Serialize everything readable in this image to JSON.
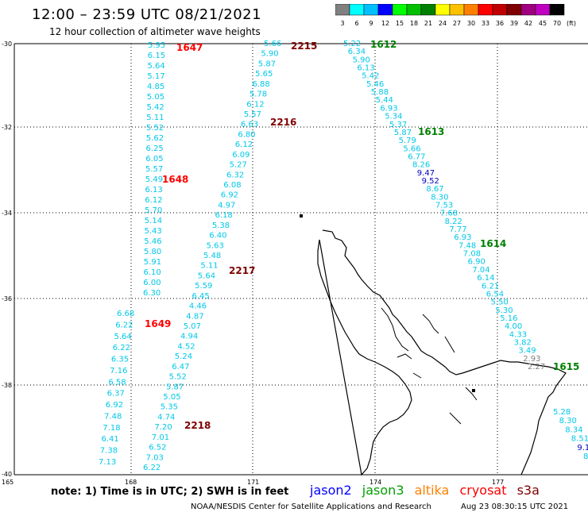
{
  "title": "12:00 – 23:59 UTC 08/21/2021",
  "subtitle": "12 hour collection of altimeter wave heights",
  "legend": {
    "colors": [
      "#808080",
      "#00ffff",
      "#00c0ff",
      "#0000ff",
      "#00ff00",
      "#00c000",
      "#008000",
      "#ffff00",
      "#ffc000",
      "#ff8000",
      "#ff0000",
      "#c00000",
      "#800000",
      "#a00080",
      "#c000c0",
      "#000000"
    ],
    "labels": [
      "3",
      "6",
      "9",
      "12",
      "15",
      "18",
      "21",
      "24",
      "27",
      "30",
      "33",
      "36",
      "39",
      "42",
      "45",
      "70",
      "(ft)"
    ]
  },
  "axes": {
    "lon_ticks": [
      "165",
      "168",
      "171",
      "174",
      "177"
    ],
    "lat_ticks": [
      "-30",
      "-32",
      "-34",
      "-36",
      "-38",
      "-40"
    ]
  },
  "passes": [
    {
      "time": "1647",
      "color": "#ff0000",
      "values": [
        "5.95",
        "6.15",
        "5.64",
        "5.17",
        "4.85",
        "5.05",
        "5.42",
        "5.11",
        "5.52",
        "5.62",
        "6.25",
        "6.05",
        "5.57",
        "5.49",
        "6.13",
        "6.12",
        "5.70",
        "5.14",
        "5.43",
        "5.46",
        "5.80",
        "5.91",
        "6.10",
        "6.00",
        "6.30"
      ]
    },
    {
      "time": "1648",
      "color": "#ff0000",
      "values": []
    },
    {
      "time": "1649",
      "color": "#ff0000",
      "values": [
        "6.68",
        "6.22",
        "5.64",
        "6.22",
        "6.35",
        "7.16",
        "6.58",
        "6.37",
        "6.92",
        "7.48",
        "7.18",
        "6.41",
        "7.38",
        "7.13"
      ]
    },
    {
      "time": "2215",
      "color": "#800000",
      "values": [
        "5.66",
        "5.90",
        "5.87",
        "5.65",
        "6.88",
        "5.78",
        "6.12",
        "5.57",
        "6.63",
        "6.80",
        "6.12",
        "6.09",
        "5.27",
        "6.32",
        "6.08",
        "6.92",
        "4.97",
        "6.18",
        "5.38",
        "6.40",
        "5.63",
        "5.48",
        "5.11",
        "5.64",
        "5.59",
        "6.45",
        "4.46",
        "4.87",
        "5.07",
        "4.94",
        "4.52",
        "5.24",
        "6.47",
        "5.52",
        "5.87",
        "5.05",
        "5.35",
        "4.74",
        "7.20",
        "7.01",
        "6.52",
        "7.03",
        "6.22"
      ]
    },
    {
      "time": "2216",
      "color": "#800000",
      "values": []
    },
    {
      "time": "2217",
      "color": "#800000",
      "values": []
    },
    {
      "time": "2218",
      "color": "#800000",
      "values": []
    },
    {
      "time": "1612",
      "color": "#008000",
      "values": [
        "5.22",
        "6.34",
        "5.90",
        "6.13",
        "5.42",
        "5.46",
        "5.88",
        "5.44",
        "6.93",
        "5.34",
        "5.37",
        "5.87",
        "5.79",
        "5.66",
        "6.77",
        "8.26",
        "9.47",
        "9.52",
        "8.67",
        "8.30",
        "7.53",
        "7.68",
        "8.22",
        "7.77",
        "6.93",
        "7.48",
        "7.08",
        "6.90",
        "7.04",
        "6.14",
        "6.21",
        "6.54",
        "5.50",
        "5.30",
        "5.16",
        "4.00",
        "4.33",
        "3.82",
        "3.49",
        "2.93",
        "2.27"
      ]
    },
    {
      "time": "1613",
      "color": "#008000",
      "values": []
    },
    {
      "time": "1614",
      "color": "#008000",
      "values": []
    },
    {
      "time": "1615",
      "color": "#008000",
      "values": [
        "5.28",
        "8.30",
        "8.34",
        "8.51",
        "9.1",
        "8."
      ]
    }
  ],
  "note": "note: 1) Time is in UTC; 2) SWH is in feet",
  "satellites": [
    {
      "name": "jason2",
      "color": "#0000ff"
    },
    {
      "name": "jason3",
      "color": "#00a000"
    },
    {
      "name": "altika",
      "color": "#ff8000"
    },
    {
      "name": "cryosat",
      "color": "#ff0000"
    },
    {
      "name": "s3a",
      "color": "#800000"
    }
  ],
  "credit": "NOAA/NESDIS Center for Satellite Applications and Research",
  "timestamp": "Aug 23 08:30:15 UTC 2021"
}
